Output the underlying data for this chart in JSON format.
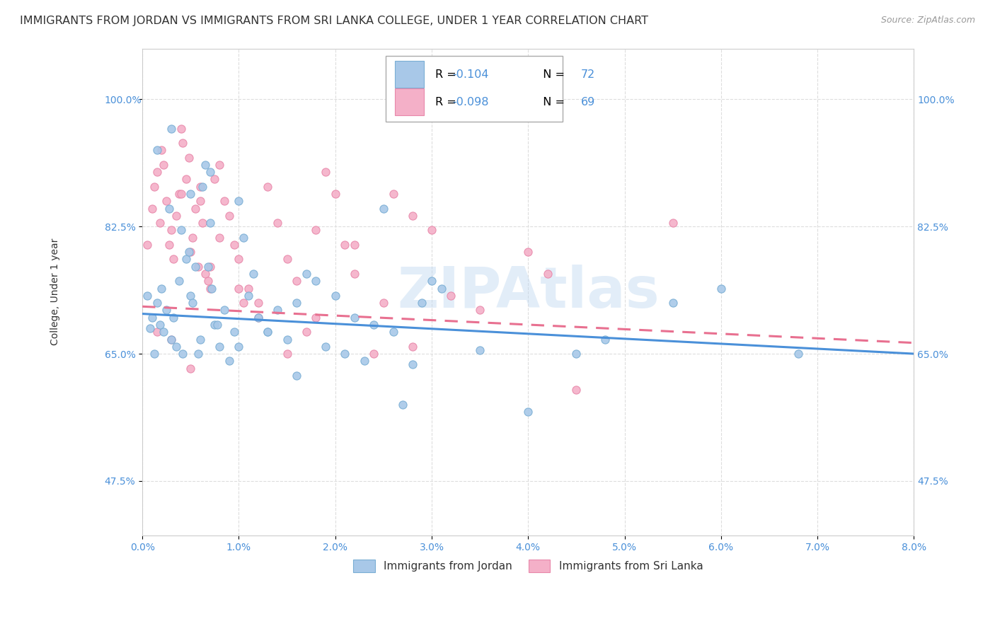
{
  "title": "IMMIGRANTS FROM JORDAN VS IMMIGRANTS FROM SRI LANKA COLLEGE, UNDER 1 YEAR CORRELATION CHART",
  "source": "Source: ZipAtlas.com",
  "ylabel_label": "College, Under 1 year",
  "xmin": 0.0,
  "xmax": 8.0,
  "ymin": 40.0,
  "ymax": 107.0,
  "jordan_color": "#a8c8e8",
  "jordan_edge": "#7aaed4",
  "srilanka_color": "#f4b0c8",
  "srilanka_edge": "#e888aa",
  "jordan_line_color": "#4a90d9",
  "srilanka_line_color": "#e87090",
  "jordan_R": -0.104,
  "jordan_N": 72,
  "srilanka_R": -0.098,
  "srilanka_N": 69,
  "jordan_scatter_x": [
    0.05,
    0.08,
    0.1,
    0.12,
    0.15,
    0.18,
    0.2,
    0.22,
    0.25,
    0.28,
    0.3,
    0.32,
    0.35,
    0.38,
    0.4,
    0.42,
    0.45,
    0.48,
    0.5,
    0.52,
    0.55,
    0.58,
    0.6,
    0.62,
    0.65,
    0.68,
    0.7,
    0.72,
    0.75,
    0.78,
    0.8,
    0.85,
    0.9,
    0.95,
    1.0,
    1.05,
    1.1,
    1.15,
    1.2,
    1.3,
    1.4,
    1.5,
    1.6,
    1.7,
    1.8,
    1.9,
    2.0,
    2.1,
    2.2,
    2.3,
    2.4,
    2.5,
    2.6,
    2.7,
    2.8,
    2.9,
    3.0,
    3.1,
    3.5,
    4.0,
    4.5,
    4.8,
    5.5,
    6.0,
    6.8,
    0.15,
    0.3,
    0.5,
    0.7,
    1.0,
    1.3,
    1.6
  ],
  "jordan_scatter_y": [
    73.0,
    68.5,
    70.0,
    65.0,
    72.0,
    69.0,
    74.0,
    68.0,
    71.0,
    85.0,
    67.0,
    70.0,
    66.0,
    75.0,
    82.0,
    65.0,
    78.0,
    79.0,
    73.0,
    72.0,
    77.0,
    65.0,
    67.0,
    88.0,
    91.0,
    77.0,
    83.0,
    74.0,
    69.0,
    69.0,
    66.0,
    71.0,
    64.0,
    68.0,
    66.0,
    81.0,
    73.0,
    76.0,
    70.0,
    68.0,
    71.0,
    67.0,
    72.0,
    76.0,
    75.0,
    66.0,
    73.0,
    65.0,
    70.0,
    64.0,
    69.0,
    85.0,
    68.0,
    58.0,
    63.5,
    72.0,
    75.0,
    74.0,
    65.5,
    57.0,
    65.0,
    67.0,
    72.0,
    74.0,
    65.0,
    93.0,
    96.0,
    87.0,
    90.0,
    86.0,
    68.0,
    62.0
  ],
  "srilanka_scatter_x": [
    0.05,
    0.1,
    0.12,
    0.15,
    0.18,
    0.2,
    0.22,
    0.25,
    0.28,
    0.3,
    0.32,
    0.35,
    0.38,
    0.4,
    0.42,
    0.45,
    0.48,
    0.5,
    0.52,
    0.55,
    0.58,
    0.6,
    0.62,
    0.65,
    0.68,
    0.7,
    0.75,
    0.8,
    0.85,
    0.9,
    0.95,
    1.0,
    1.05,
    1.1,
    1.2,
    1.3,
    1.4,
    1.5,
    1.6,
    1.7,
    1.8,
    1.9,
    2.0,
    2.1,
    2.2,
    2.4,
    2.5,
    2.6,
    2.8,
    3.2,
    3.5,
    4.0,
    4.2,
    4.5,
    5.5,
    0.15,
    0.3,
    0.5,
    0.7,
    1.0,
    1.2,
    1.5,
    1.8,
    2.2,
    2.8,
    3.0,
    0.4,
    0.6,
    0.8
  ],
  "srilanka_scatter_y": [
    80.0,
    85.0,
    88.0,
    90.0,
    83.0,
    93.0,
    91.0,
    86.0,
    80.0,
    82.0,
    78.0,
    84.0,
    87.0,
    96.0,
    94.0,
    89.0,
    92.0,
    79.0,
    81.0,
    85.0,
    77.0,
    88.0,
    83.0,
    76.0,
    75.0,
    74.0,
    89.0,
    91.0,
    86.0,
    84.0,
    80.0,
    78.0,
    72.0,
    74.0,
    70.0,
    88.0,
    83.0,
    78.0,
    75.0,
    68.0,
    82.0,
    90.0,
    87.0,
    80.0,
    76.0,
    65.0,
    72.0,
    87.0,
    84.0,
    73.0,
    71.0,
    79.0,
    76.0,
    60.0,
    83.0,
    68.0,
    67.0,
    63.0,
    77.0,
    74.0,
    72.0,
    65.0,
    70.0,
    80.0,
    66.0,
    82.0,
    87.0,
    86.0,
    81.0
  ],
  "legend_label_jordan": "Immigrants from Jordan",
  "legend_label_srilanka": "Immigrants from Sri Lanka",
  "watermark": "ZIPAtlas",
  "background_color": "#ffffff",
  "grid_color": "#dddddd",
  "tick_color": "#4a90d9",
  "title_color": "#333333",
  "r_color": "#4a90d9",
  "ytick_labels": [
    "47.5%",
    "65.0%",
    "82.5%",
    "100.0%"
  ],
  "ytick_values": [
    47.5,
    65.0,
    82.5,
    100.0
  ],
  "xtick_labels": [
    "0.0%",
    "1.0%",
    "2.0%",
    "3.0%",
    "4.0%",
    "5.0%",
    "6.0%",
    "7.0%",
    "8.0%"
  ],
  "xtick_values": [
    0.0,
    1.0,
    2.0,
    3.0,
    4.0,
    5.0,
    6.0,
    7.0,
    8.0
  ]
}
